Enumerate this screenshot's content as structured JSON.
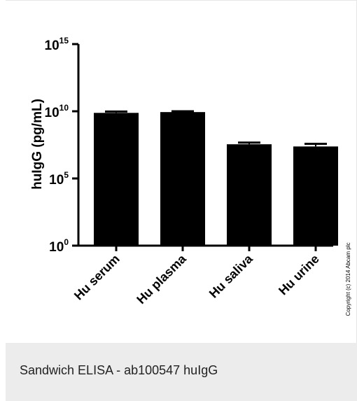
{
  "chart_data": {
    "type": "bar",
    "categories": [
      "Hu serum",
      "Hu plasma",
      "Hu saliva",
      "Hu urine"
    ],
    "values": [
      7600000000.0,
      8700000000.0,
      35000000.0,
      24000000.0
    ],
    "errors_upper": [
      9600000000.0,
      10000000000.0,
      47000000.0,
      38000000.0
    ],
    "ylabel_main": "huIgG (pg/mL)",
    "yscale": "log",
    "ylim": [
      1,
      1000000000000000.0
    ],
    "yticks": [
      {
        "base": "10",
        "exp": "0",
        "value": 1
      },
      {
        "base": "10",
        "exp": "5",
        "value": 100000
      },
      {
        "base": "10",
        "exp": "10",
        "value": 10000000000
      },
      {
        "base": "10",
        "exp": "15",
        "value": 1000000000000000
      }
    ],
    "bar_color": "#000000",
    "watermark": "Copyright (c) 2014 Abcam plc"
  },
  "caption": "Sandwich ELISA - ab100547 huIgG"
}
